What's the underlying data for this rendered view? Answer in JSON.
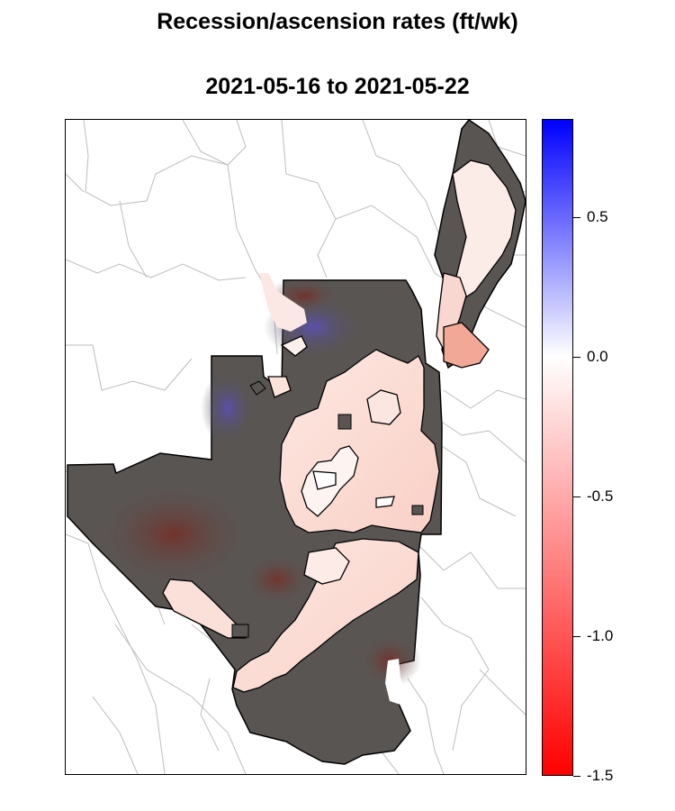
{
  "map": {
    "title": "Recession/ascension rates (ft/wk)",
    "subtitle": "2021-05-16 to 2021-05-22"
  },
  "legend": {
    "ticks": [
      {
        "value": 0.5,
        "label": "0.5"
      },
      {
        "value": 0.0,
        "label": "0.0"
      },
      {
        "value": -0.5,
        "label": "-0.5"
      },
      {
        "value": -1.0,
        "label": "-1.0"
      },
      {
        "value": -1.5,
        "label": "-1.5"
      }
    ],
    "colors": {
      "max": "#0000ff",
      "zero": "#ffffff",
      "min": "#ff0000"
    }
  },
  "colors": {
    "masked_area": "#595553",
    "boundary_lines": "#bfbfbf",
    "contour_lines": "#000000"
  }
}
